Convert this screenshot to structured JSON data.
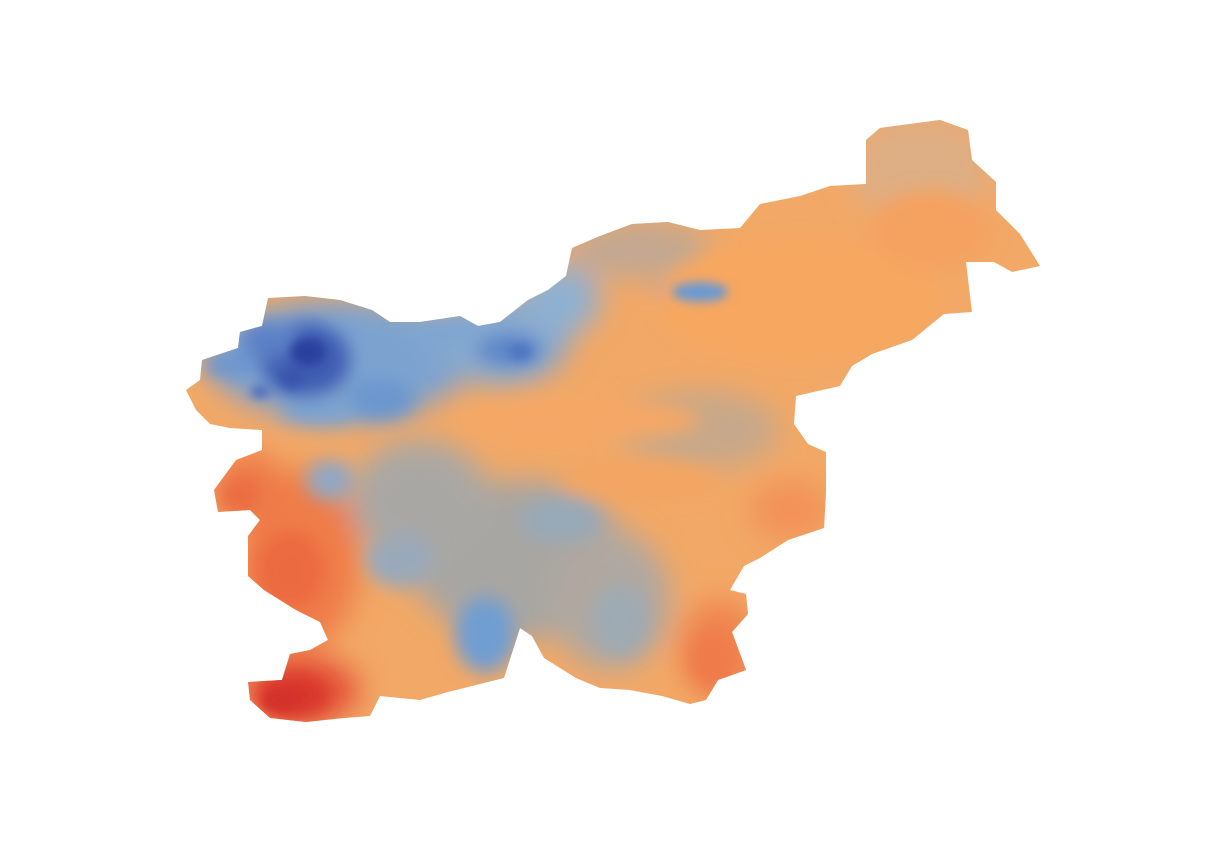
{
  "map": {
    "region": "Slovenia",
    "kind": "raster-heatmap",
    "legend_shown": false,
    "title_shown": false,
    "palette": {
      "deep_blue": "#2b3f9e",
      "blue": "#5a8fd0",
      "light_blue": "#7fa9d6",
      "grey_blue": "#a0a8b0",
      "tan": "#d9a77a",
      "orange": "#f6a55e",
      "dark_orange": "#ef7a45",
      "red": "#d8362a"
    }
  }
}
